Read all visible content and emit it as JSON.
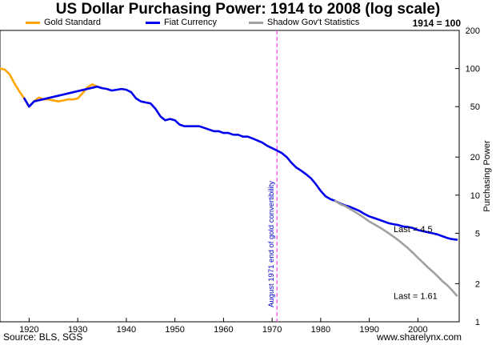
{
  "chart_data": {
    "type": "line",
    "title": "US Dollar Purchasing Power: 1914 to 2008 (log scale)",
    "base_note": "1914 = 100",
    "ylabel": "Purchasing Power",
    "xlabel": "",
    "yscale": "log",
    "xlim": [
      1914,
      2008.5
    ],
    "ylim": [
      1,
      200
    ],
    "x_ticks": [
      1920,
      1930,
      1940,
      1950,
      1960,
      1970,
      1980,
      1990,
      2000
    ],
    "y_ticks": [
      1,
      2,
      5,
      10,
      20,
      50,
      100,
      200
    ],
    "grid": false,
    "legend_position": "top",
    "series": [
      {
        "name": "Gold Standard",
        "color": "#FFA500",
        "points": [
          [
            1914,
            100
          ],
          [
            1915,
            98
          ],
          [
            1916,
            90
          ],
          [
            1917,
            76
          ],
          [
            1918,
            66
          ],
          [
            1919,
            58
          ],
          [
            1920,
            50
          ],
          [
            1921,
            55
          ],
          [
            1922,
            59
          ],
          [
            1923,
            57
          ],
          [
            1924,
            57
          ],
          [
            1925,
            56
          ],
          [
            1926,
            55
          ],
          [
            1927,
            56
          ],
          [
            1928,
            57
          ],
          [
            1929,
            57
          ],
          [
            1930,
            58
          ],
          [
            1931,
            64
          ],
          [
            1932,
            71
          ],
          [
            1933,
            75
          ],
          [
            1934,
            72
          ]
        ]
      },
      {
        "name": "Fiat Currency",
        "color": "#0000EE",
        "points": [
          [
            1919,
            58
          ],
          [
            1920,
            50
          ],
          [
            1921,
            55
          ],
          [
            1934,
            72
          ],
          [
            1935,
            70
          ],
          [
            1936,
            69
          ],
          [
            1937,
            67
          ],
          [
            1938,
            68
          ],
          [
            1939,
            69
          ],
          [
            1940,
            68
          ],
          [
            1941,
            65
          ],
          [
            1942,
            58
          ],
          [
            1943,
            55
          ],
          [
            1944,
            54
          ],
          [
            1945,
            53
          ],
          [
            1946,
            48
          ],
          [
            1947,
            42
          ],
          [
            1948,
            39
          ],
          [
            1949,
            40
          ],
          [
            1950,
            39
          ],
          [
            1951,
            36
          ],
          [
            1952,
            35
          ],
          [
            1953,
            35
          ],
          [
            1954,
            35
          ],
          [
            1955,
            35
          ],
          [
            1956,
            34
          ],
          [
            1957,
            33
          ],
          [
            1958,
            32
          ],
          [
            1959,
            32
          ],
          [
            1960,
            31
          ],
          [
            1961,
            31
          ],
          [
            1962,
            30
          ],
          [
            1963,
            30
          ],
          [
            1964,
            29
          ],
          [
            1965,
            29
          ],
          [
            1966,
            28
          ],
          [
            1967,
            27
          ],
          [
            1968,
            26
          ],
          [
            1969,
            24.5
          ],
          [
            1970,
            23.5
          ],
          [
            1971,
            22.5
          ],
          [
            1972,
            21.5
          ],
          [
            1973,
            20
          ],
          [
            1974,
            18
          ],
          [
            1975,
            16.5
          ],
          [
            1976,
            15.6
          ],
          [
            1977,
            14.6
          ],
          [
            1978,
            13.6
          ],
          [
            1979,
            12.2
          ],
          [
            1980,
            10.8
          ],
          [
            1981,
            9.8
          ],
          [
            1982,
            9.3
          ],
          [
            1983,
            9
          ],
          [
            1984,
            8.6
          ],
          [
            1985,
            8.3
          ],
          [
            1986,
            8.1
          ],
          [
            1987,
            7.8
          ],
          [
            1988,
            7.5
          ],
          [
            1989,
            7.1
          ],
          [
            1990,
            6.8
          ],
          [
            1991,
            6.6
          ],
          [
            1992,
            6.4
          ],
          [
            1993,
            6.2
          ],
          [
            1994,
            6.0
          ],
          [
            1995,
            5.9
          ],
          [
            1996,
            5.8
          ],
          [
            1997,
            5.65
          ],
          [
            1998,
            5.6
          ],
          [
            1999,
            5.5
          ],
          [
            2000,
            5.3
          ],
          [
            2001,
            5.2
          ],
          [
            2002,
            5.1
          ],
          [
            2003,
            5.0
          ],
          [
            2004,
            4.9
          ],
          [
            2005,
            4.75
          ],
          [
            2006,
            4.6
          ],
          [
            2007,
            4.5
          ],
          [
            2008,
            4.45
          ]
        ]
      },
      {
        "name": "Shadow Gov't Statistics",
        "color": "#A0A0A0",
        "points": [
          [
            1983,
            9
          ],
          [
            1984,
            8.5
          ],
          [
            1985,
            8.2
          ],
          [
            1986,
            7.8
          ],
          [
            1987,
            7.4
          ],
          [
            1988,
            7.0
          ],
          [
            1989,
            6.6
          ],
          [
            1990,
            6.2
          ],
          [
            1991,
            5.9
          ],
          [
            1992,
            5.6
          ],
          [
            1993,
            5.3
          ],
          [
            1994,
            5.0
          ],
          [
            1995,
            4.7
          ],
          [
            1996,
            4.4
          ],
          [
            1997,
            4.1
          ],
          [
            1998,
            3.8
          ],
          [
            1999,
            3.5
          ],
          [
            2000,
            3.2
          ],
          [
            2001,
            2.95
          ],
          [
            2002,
            2.7
          ],
          [
            2003,
            2.5
          ],
          [
            2004,
            2.3
          ],
          [
            2005,
            2.1
          ],
          [
            2006,
            1.95
          ],
          [
            2007,
            1.78
          ],
          [
            2008,
            1.61
          ]
        ]
      }
    ],
    "annotations": [
      {
        "type": "vline",
        "x": 1971,
        "color": "#FF40FF",
        "text": "August 1971 end of gold convertibility",
        "text_color": "#0000CC"
      },
      {
        "type": "label",
        "x": 1995,
        "y": 5.4,
        "text": "Last = 4.5"
      },
      {
        "type": "label",
        "x": 1995,
        "y": 1.61,
        "text": "Last = 1.61"
      }
    ]
  },
  "footer": {
    "source": "Source: BLS, SGS",
    "website": "www.sharelynx.com"
  }
}
